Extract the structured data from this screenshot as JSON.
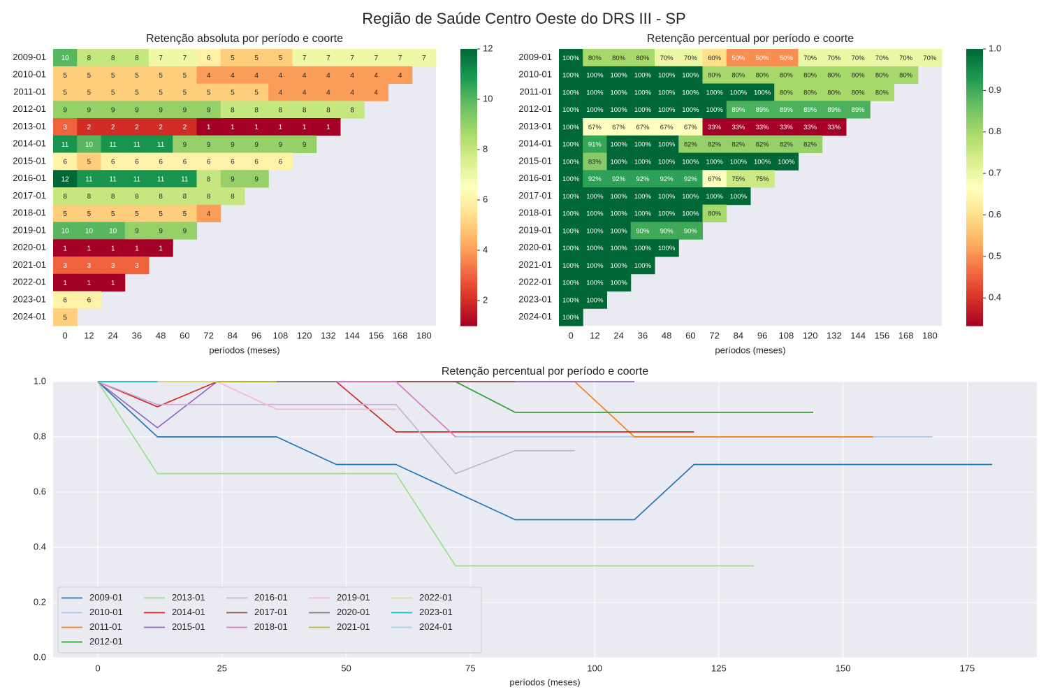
{
  "title": "Região de Saúde Centro Oeste do DRS III - SP",
  "chart_data": [
    {
      "type": "heatmap",
      "title": "Retenção absoluta por período e coorte",
      "xlabel": "períodos (meses)",
      "cmap": "RdYlGn",
      "rows": [
        "2009-01",
        "2010-01",
        "2011-01",
        "2012-01",
        "2013-01",
        "2014-01",
        "2015-01",
        "2016-01",
        "2017-01",
        "2018-01",
        "2019-01",
        "2020-01",
        "2021-01",
        "2022-01",
        "2023-01",
        "2024-01"
      ],
      "columns": [
        0,
        12,
        24,
        36,
        48,
        60,
        72,
        84,
        96,
        108,
        120,
        132,
        144,
        156,
        168,
        180
      ],
      "values": [
        [
          10,
          8,
          8,
          8,
          7,
          7,
          6,
          5,
          5,
          5,
          7,
          7,
          7,
          7,
          7,
          7
        ],
        [
          5,
          5,
          5,
          5,
          5,
          5,
          4,
          4,
          4,
          4,
          4,
          4,
          4,
          4,
          4
        ],
        [
          5,
          5,
          5,
          5,
          5,
          5,
          5,
          5,
          5,
          4,
          4,
          4,
          4,
          4
        ],
        [
          9,
          9,
          9,
          9,
          9,
          9,
          9,
          8,
          8,
          8,
          8,
          8,
          8
        ],
        [
          3,
          2,
          2,
          2,
          2,
          2,
          1,
          1,
          1,
          1,
          1,
          1
        ],
        [
          11,
          10,
          11,
          11,
          11,
          9,
          9,
          9,
          9,
          9,
          9
        ],
        [
          6,
          5,
          6,
          6,
          6,
          6,
          6,
          6,
          6,
          6
        ],
        [
          12,
          11,
          11,
          11,
          11,
          11,
          8,
          9,
          9
        ],
        [
          8,
          8,
          8,
          8,
          8,
          8,
          8,
          8
        ],
        [
          5,
          5,
          5,
          5,
          5,
          5,
          4
        ],
        [
          10,
          10,
          10,
          9,
          9,
          9
        ],
        [
          1,
          1,
          1,
          1,
          1
        ],
        [
          3,
          3,
          3,
          3
        ],
        [
          1,
          1,
          1
        ],
        [
          6,
          6
        ],
        [
          5
        ]
      ],
      "clim": [
        1,
        12
      ],
      "cticks": [
        2,
        4,
        6,
        8,
        10,
        12
      ]
    },
    {
      "type": "heatmap",
      "title": "Retenção percentual por período e coorte",
      "xlabel": "períodos (meses)",
      "cmap": "RdYlGn",
      "rows": [
        "2009-01",
        "2010-01",
        "2011-01",
        "2012-01",
        "2013-01",
        "2014-01",
        "2015-01",
        "2016-01",
        "2017-01",
        "2018-01",
        "2019-01",
        "2020-01",
        "2021-01",
        "2022-01",
        "2023-01",
        "2024-01"
      ],
      "columns": [
        0,
        12,
        24,
        36,
        48,
        60,
        72,
        84,
        96,
        108,
        120,
        132,
        144,
        156,
        168,
        180
      ],
      "values": [
        [
          1,
          0.8,
          0.8,
          0.8,
          0.7,
          0.7,
          0.6,
          0.5,
          0.5,
          0.5,
          0.7,
          0.7,
          0.7,
          0.7,
          0.7,
          0.7
        ],
        [
          1,
          1,
          1,
          1,
          1,
          1,
          0.8,
          0.8,
          0.8,
          0.8,
          0.8,
          0.8,
          0.8,
          0.8,
          0.8
        ],
        [
          1,
          1,
          1,
          1,
          1,
          1,
          1,
          1,
          1,
          0.8,
          0.8,
          0.8,
          0.8,
          0.8
        ],
        [
          1,
          1,
          1,
          1,
          1,
          1,
          1,
          0.889,
          0.889,
          0.889,
          0.889,
          0.889,
          0.889
        ],
        [
          1,
          0.667,
          0.667,
          0.667,
          0.667,
          0.667,
          0.333,
          0.333,
          0.333,
          0.333,
          0.333,
          0.333
        ],
        [
          1,
          0.909,
          1,
          1,
          1,
          0.818,
          0.818,
          0.818,
          0.818,
          0.818,
          0.818
        ],
        [
          1,
          0.833,
          1,
          1,
          1,
          1,
          1,
          1,
          1,
          1
        ],
        [
          1,
          0.917,
          0.917,
          0.917,
          0.917,
          0.917,
          0.667,
          0.75,
          0.75
        ],
        [
          1,
          1,
          1,
          1,
          1,
          1,
          1,
          1
        ],
        [
          1,
          1,
          1,
          1,
          1,
          1,
          0.8
        ],
        [
          1,
          1,
          1,
          0.9,
          0.9,
          0.9
        ],
        [
          1,
          1,
          1,
          1,
          1
        ],
        [
          1,
          1,
          1,
          1
        ],
        [
          1,
          1,
          1
        ],
        [
          1,
          1
        ],
        [
          1
        ]
      ],
      "value_labels": [
        [
          "100%",
          "80%",
          "80%",
          "80%",
          "70%",
          "70%",
          "60%",
          "50%",
          "50%",
          "50%",
          "70%",
          "70%",
          "70%",
          "70%",
          "70%",
          "70%"
        ],
        [
          "100%",
          "100%",
          "100%",
          "100%",
          "100%",
          "100%",
          "80%",
          "80%",
          "80%",
          "80%",
          "80%",
          "80%",
          "80%",
          "80%",
          "80%"
        ],
        [
          "100%",
          "100%",
          "100%",
          "100%",
          "100%",
          "100%",
          "100%",
          "100%",
          "100%",
          "80%",
          "80%",
          "80%",
          "80%",
          "80%"
        ],
        [
          "100%",
          "100%",
          "100%",
          "100%",
          "100%",
          "100%",
          "100%",
          "89%",
          "89%",
          "89%",
          "89%",
          "89%",
          "89%"
        ],
        [
          "100%",
          "67%",
          "67%",
          "67%",
          "67%",
          "67%",
          "33%",
          "33%",
          "33%",
          "33%",
          "33%",
          "33%"
        ],
        [
          "100%",
          "91%",
          "100%",
          "100%",
          "100%",
          "82%",
          "82%",
          "82%",
          "82%",
          "82%",
          "82%"
        ],
        [
          "100%",
          "83%",
          "100%",
          "100%",
          "100%",
          "100%",
          "100%",
          "100%",
          "100%",
          "100%"
        ],
        [
          "100%",
          "92%",
          "92%",
          "92%",
          "92%",
          "92%",
          "67%",
          "75%",
          "75%"
        ],
        [
          "100%",
          "100%",
          "100%",
          "100%",
          "100%",
          "100%",
          "100%",
          "100%"
        ],
        [
          "100%",
          "100%",
          "100%",
          "100%",
          "100%",
          "100%",
          "80%"
        ],
        [
          "100%",
          "100%",
          "100%",
          "90%",
          "90%",
          "90%"
        ],
        [
          "100%",
          "100%",
          "100%",
          "100%",
          "100%"
        ],
        [
          "100%",
          "100%",
          "100%",
          "100%"
        ],
        [
          "100%",
          "100%",
          "100%"
        ],
        [
          "100%",
          "100%"
        ],
        [
          "100%"
        ]
      ],
      "clim": [
        0.333,
        1
      ],
      "cticks": [
        0.4,
        0.5,
        0.6,
        0.7,
        0.8,
        0.9,
        {
          "value": 1,
          "label": "1.0"
        }
      ]
    },
    {
      "type": "line",
      "title": "Retenção percentual por período e coorte",
      "xlabel": "períodos (meses)",
      "x": [
        0,
        12,
        24,
        36,
        48,
        60,
        72,
        84,
        96,
        108,
        120,
        132,
        144,
        156,
        168,
        180
      ],
      "xlim": [
        -9,
        189
      ],
      "xticks": [
        0,
        25,
        50,
        75,
        100,
        125,
        150,
        175
      ],
      "ylim": [
        0,
        1
      ],
      "yticks": [
        {
          "value": 0,
          "label": "0.0"
        },
        0.2,
        0.4,
        0.6,
        0.8,
        {
          "value": 1,
          "label": "1.0"
        }
      ],
      "grid": true,
      "legend": "lower left",
      "legend_columns": 5,
      "series": [
        {
          "name": "2009-01",
          "color": "#1f77b4",
          "values": [
            1,
            0.8,
            0.8,
            0.8,
            0.7,
            0.7,
            0.6,
            0.5,
            0.5,
            0.5,
            0.7,
            0.7,
            0.7,
            0.7,
            0.7,
            0.7
          ]
        },
        {
          "name": "2010-01",
          "color": "#aec7e8",
          "values": [
            1,
            1,
            1,
            1,
            1,
            1,
            0.8,
            0.8,
            0.8,
            0.8,
            0.8,
            0.8,
            0.8,
            0.8,
            0.8,
            null
          ]
        },
        {
          "name": "2011-01",
          "color": "#ff7f0e",
          "values": [
            1,
            1,
            1,
            1,
            1,
            1,
            1,
            1,
            1,
            0.8,
            0.8,
            0.8,
            0.8,
            0.8,
            null,
            null
          ]
        },
        {
          "name": "2012-01",
          "color": "#2ca02c",
          "values": [
            1,
            1,
            1,
            1,
            1,
            1,
            1,
            0.889,
            0.889,
            0.889,
            0.889,
            0.889,
            0.889,
            null,
            null,
            null
          ]
        },
        {
          "name": "2013-01",
          "color": "#98df8a",
          "values": [
            1,
            0.667,
            0.667,
            0.667,
            0.667,
            0.667,
            0.333,
            0.333,
            0.333,
            0.333,
            0.333,
            0.333,
            null,
            null,
            null,
            null
          ]
        },
        {
          "name": "2014-01",
          "color": "#d62728",
          "values": [
            1,
            0.909,
            1,
            1,
            1,
            0.818,
            0.818,
            0.818,
            0.818,
            0.818,
            0.818,
            null,
            null,
            null,
            null,
            null
          ]
        },
        {
          "name": "2015-01",
          "color": "#9467bd",
          "values": [
            1,
            0.833,
            1,
            1,
            1,
            1,
            1,
            1,
            1,
            1,
            null,
            null,
            null,
            null,
            null,
            null
          ]
        },
        {
          "name": "2016-01",
          "color": "#c5b0d5",
          "values": [
            1,
            0.917,
            0.917,
            0.917,
            0.917,
            0.917,
            0.667,
            0.75,
            0.75,
            null,
            null,
            null,
            null,
            null,
            null,
            null
          ]
        },
        {
          "name": "2017-01",
          "color": "#8c564b",
          "values": [
            1,
            1,
            1,
            1,
            1,
            1,
            1,
            1,
            null,
            null,
            null,
            null,
            null,
            null,
            null,
            null
          ]
        },
        {
          "name": "2018-01",
          "color": "#e377c2",
          "values": [
            1,
            1,
            1,
            1,
            1,
            1,
            0.8,
            null,
            null,
            null,
            null,
            null,
            null,
            null,
            null,
            null
          ]
        },
        {
          "name": "2019-01",
          "color": "#f7b6d2",
          "values": [
            1,
            1,
            1,
            0.9,
            0.9,
            0.9,
            null,
            null,
            null,
            null,
            null,
            null,
            null,
            null,
            null,
            null
          ]
        },
        {
          "name": "2020-01",
          "color": "#7f7f7f",
          "values": [
            1,
            1,
            1,
            1,
            1,
            null,
            null,
            null,
            null,
            null,
            null,
            null,
            null,
            null,
            null,
            null
          ]
        },
        {
          "name": "2021-01",
          "color": "#bcbd22",
          "values": [
            1,
            1,
            1,
            1,
            null,
            null,
            null,
            null,
            null,
            null,
            null,
            null,
            null,
            null,
            null,
            null
          ]
        },
        {
          "name": "2022-01",
          "color": "#dbdb8d",
          "values": [
            1,
            1,
            1,
            null,
            null,
            null,
            null,
            null,
            null,
            null,
            null,
            null,
            null,
            null,
            null,
            null
          ]
        },
        {
          "name": "2023-01",
          "color": "#17becf",
          "values": [
            1,
            1,
            null,
            null,
            null,
            null,
            null,
            null,
            null,
            null,
            null,
            null,
            null,
            null,
            null,
            null
          ]
        },
        {
          "name": "2024-01",
          "color": "#9edae5",
          "values": [
            1,
            null,
            null,
            null,
            null,
            null,
            null,
            null,
            null,
            null,
            null,
            null,
            null,
            null,
            null,
            null
          ]
        }
      ]
    }
  ]
}
